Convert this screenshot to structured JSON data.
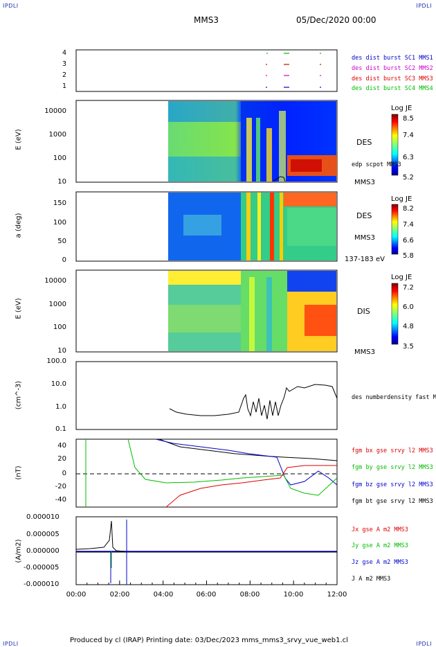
{
  "header": {
    "corner_left": "IPDLI",
    "corner_right": "IPDLI",
    "corner_bl": "IPDLI",
    "corner_br": "IPDLI",
    "title": "MMS3",
    "date": "05/Dec/2020 00:00"
  },
  "footer": {
    "text": "Produced by cl (IRAP)   Printing date: 03/Dec/2023   mms_mms3_srvy_vue_web1.cl"
  },
  "colors": {
    "sc1": "#0000cc",
    "sc2": "#cc00cc",
    "sc3": "#dd0000",
    "sc4": "#00bb00"
  },
  "chart_data": [
    {
      "type": "scatter",
      "panel": "burst",
      "yticks": [
        "4",
        "3",
        "2",
        "1"
      ],
      "labels": [
        "des dist burst SC1 MMS1",
        "des dist burst SC2 MMS2",
        "des dist burst SC3 MMS3",
        "des dist burst SC4 MMS4"
      ]
    },
    {
      "type": "heatmap",
      "panel": "des-energy",
      "ylabel": "E (eV)",
      "yticks": [
        "10000",
        "1000",
        "100",
        "10"
      ],
      "species": "DES",
      "overlay": "edp scpot MMS3",
      "probe": "MMS3",
      "colorbar": {
        "title": "Log JE",
        "ticks": [
          "8.5",
          "7.4",
          "6.3",
          "5.2"
        ]
      }
    },
    {
      "type": "heatmap",
      "panel": "des-pitch",
      "ylabel": "a (deg)",
      "yticks": [
        "150",
        "100",
        "50",
        "0"
      ],
      "species": "DES",
      "probe": "MMS3",
      "energy_band": "137-183 eV",
      "colorbar": {
        "title": "Log JE",
        "ticks": [
          "8.2",
          "7.4",
          "6.6",
          "5.8"
        ]
      }
    },
    {
      "type": "heatmap",
      "panel": "dis-energy",
      "ylabel": "E (eV)",
      "yticks": [
        "10000",
        "1000",
        "100",
        "10"
      ],
      "species": "DIS",
      "probe": "MMS3",
      "colorbar": {
        "title": "Log JE",
        "ticks": [
          "7.2",
          "6.0",
          "4.8",
          "3.5"
        ]
      }
    },
    {
      "type": "line",
      "panel": "density",
      "ylabel": "(cm^-3)",
      "yticks": [
        "100.0",
        "10.0",
        "1.0",
        "0.1"
      ],
      "series_label": "des numberdensity fast M"
    },
    {
      "type": "line",
      "panel": "fgm",
      "ylabel": "(nT)",
      "yticks": [
        "40",
        "20",
        "0",
        "-20",
        "-40"
      ],
      "series": [
        {
          "name": "fgm bx gse srvy l2 MMS3"
        },
        {
          "name": "fgm by gse srvy l2 MMS3"
        },
        {
          "name": "fgm bz gse srvy l2 MMS3"
        },
        {
          "name": "fgm bt gse srvy l2 MMS3"
        }
      ]
    },
    {
      "type": "line",
      "panel": "current",
      "ylabel": "(A/m2)",
      "yticks": [
        "0.000010",
        "0.000005",
        "0.000000",
        "-0.000005",
        "-0.000010"
      ],
      "series": [
        {
          "name": "Jx gse A m2 MMS3"
        },
        {
          "name": "Jy gse A m2 MMS3"
        },
        {
          "name": "Jz gse A m2 MMS3"
        },
        {
          "name": "J A m2 MMS3"
        }
      ],
      "xticks": [
        "00:00",
        "02:00",
        "04:00",
        "06:00",
        "08:00",
        "10:00",
        "12:00"
      ]
    }
  ]
}
